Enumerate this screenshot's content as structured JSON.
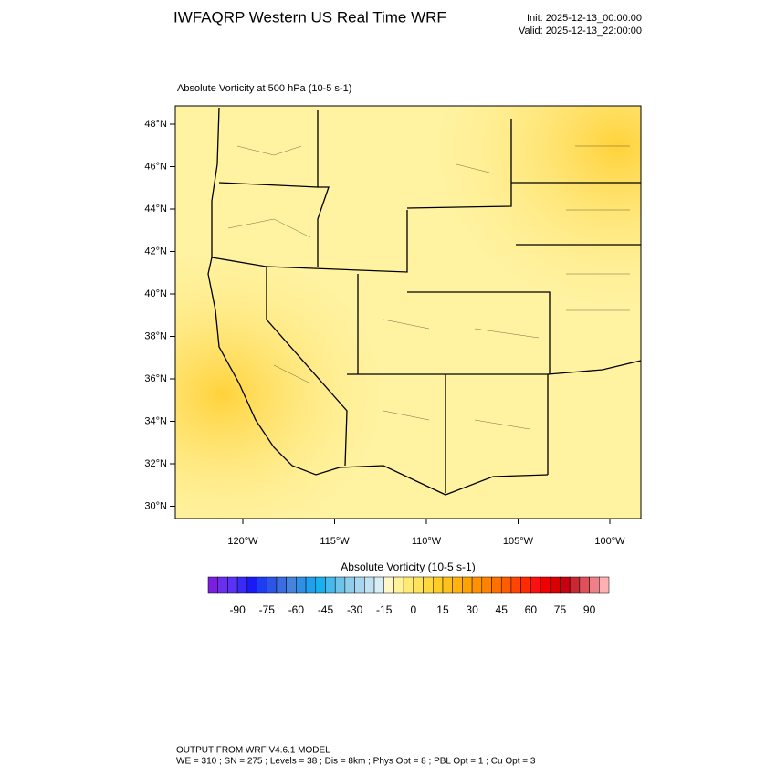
{
  "header": {
    "title": "IWFAQRP Western US Real Time WRF",
    "init": "Init: 2025-12-13_00:00:00",
    "valid": "Valid: 2025-12-13_22:00:00"
  },
  "map": {
    "title": "Absolute Vorticity at 500 hPa   (10-5 s-1)",
    "lat_labels": [
      "48°N",
      "46°N",
      "44°N",
      "42°N",
      "40°N",
      "38°N",
      "36°N",
      "34°N",
      "32°N",
      "30°N"
    ],
    "lon_labels": [
      "120°W",
      "115°W",
      "110°W",
      "105°W",
      "100°W"
    ]
  },
  "colorbar": {
    "title": "Absolute Vorticity  (10-5 s-1)",
    "labels": [
      -90,
      -75,
      -60,
      -45,
      -30,
      -15,
      0,
      15,
      30,
      45,
      60,
      75,
      90
    ],
    "colors": [
      "#7a1fe0",
      "#6a2ef0",
      "#5a32f5",
      "#3a2af5",
      "#1a1af5",
      "#1e3cf0",
      "#2c55e6",
      "#3a6ee0",
      "#4683dc",
      "#2f8fe6",
      "#1fa0ee",
      "#19b0f0",
      "#45b8ec",
      "#6cc4ea",
      "#90cdea",
      "#a8d6ee",
      "#c2e2f2",
      "#d8eef6",
      "#fff7c8",
      "#fff29a",
      "#ffeb73",
      "#ffe35a",
      "#ffd840",
      "#ffcc26",
      "#ffc01a",
      "#ffb30c",
      "#ffa300",
      "#ff9200",
      "#ff8200",
      "#ff7000",
      "#ff5c00",
      "#ff4500",
      "#ff2a00",
      "#ff1010",
      "#f00000",
      "#d80000",
      "#c80010",
      "#c82830",
      "#e0505a",
      "#f08088",
      "#ffb0b0"
    ]
  },
  "footer": {
    "line1": "OUTPUT FROM WRF V4.6.1 MODEL",
    "line2": "WE = 310 ; SN = 275 ; Levels = 38 ; Dis = 8km ; Phys Opt = 8 ; PBL Opt = 1 ; Cu Opt = 3"
  }
}
